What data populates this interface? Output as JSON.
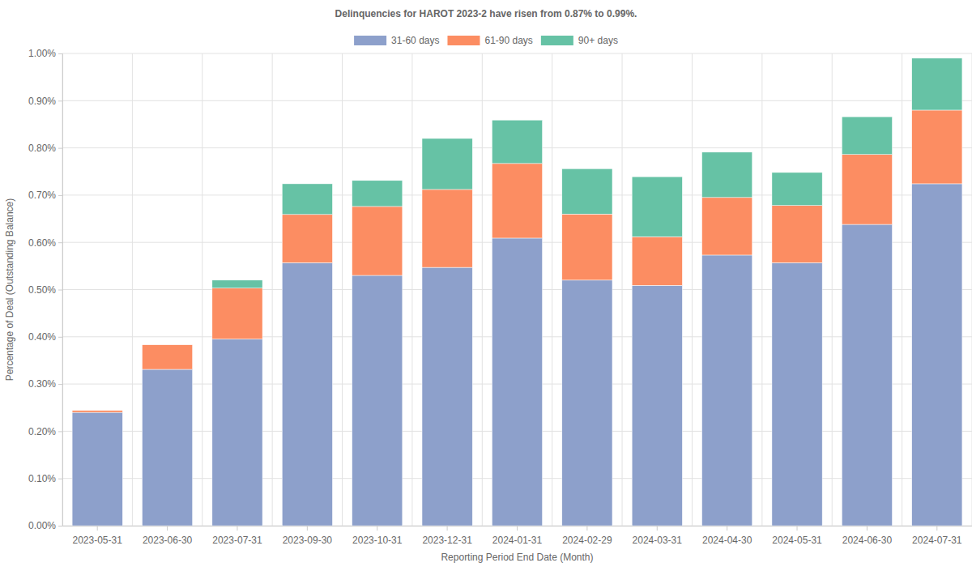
{
  "chart_data": {
    "type": "bar",
    "stacked": true,
    "grid": true,
    "legend": "top",
    "title": "Delinquencies for HAROT 2023-2 have risen from 0.87% to 0.99%.",
    "x_label": "Reporting Period End Date (Month)",
    "y_label": "Percentage of Deal (Outstanding Balance)",
    "categories": [
      "2023-05-31",
      "2023-06-30",
      "2023-07-31",
      "2023-09-30",
      "2023-10-31",
      "2023-12-31",
      "2024-01-31",
      "2024-02-29",
      "2024-03-31",
      "2024-04-30",
      "2024-05-31",
      "2024-06-30",
      "2024-07-31"
    ],
    "series": [
      {
        "name": "31-60 days",
        "color": "#8da0cb",
        "values": [
          0.24,
          0.331,
          0.395,
          0.557,
          0.53,
          0.547,
          0.609,
          0.52,
          0.509,
          0.573,
          0.557,
          0.638,
          0.724
        ]
      },
      {
        "name": "61-90 days",
        "color": "#fc8d62",
        "values": [
          0.004,
          0.052,
          0.108,
          0.102,
          0.146,
          0.165,
          0.158,
          0.14,
          0.103,
          0.122,
          0.121,
          0.148,
          0.156
        ]
      },
      {
        "name": "90+ days",
        "color": "#66c2a5",
        "values": [
          0,
          0,
          0.017,
          0.065,
          0.055,
          0.108,
          0.092,
          0.096,
          0.127,
          0.096,
          0.07,
          0.08,
          0.11
        ]
      }
    ],
    "ylim": [
      0,
      1
    ],
    "yticks": [
      {
        "value": 0,
        "label": "0.00%"
      },
      {
        "value": 0.1,
        "label": "0.10%"
      },
      {
        "value": 0.2,
        "label": "0.20%"
      },
      {
        "value": 0.3,
        "label": "0.30%"
      },
      {
        "value": 0.4,
        "label": "0.40%"
      },
      {
        "value": 0.5,
        "label": "0.50%"
      },
      {
        "value": 0.6,
        "label": "0.60%"
      },
      {
        "value": 0.7,
        "label": "0.70%"
      },
      {
        "value": 0.8,
        "label": "0.80%"
      },
      {
        "value": 0.9,
        "label": "0.90%"
      },
      {
        "value": 1,
        "label": "1.00%"
      }
    ]
  }
}
